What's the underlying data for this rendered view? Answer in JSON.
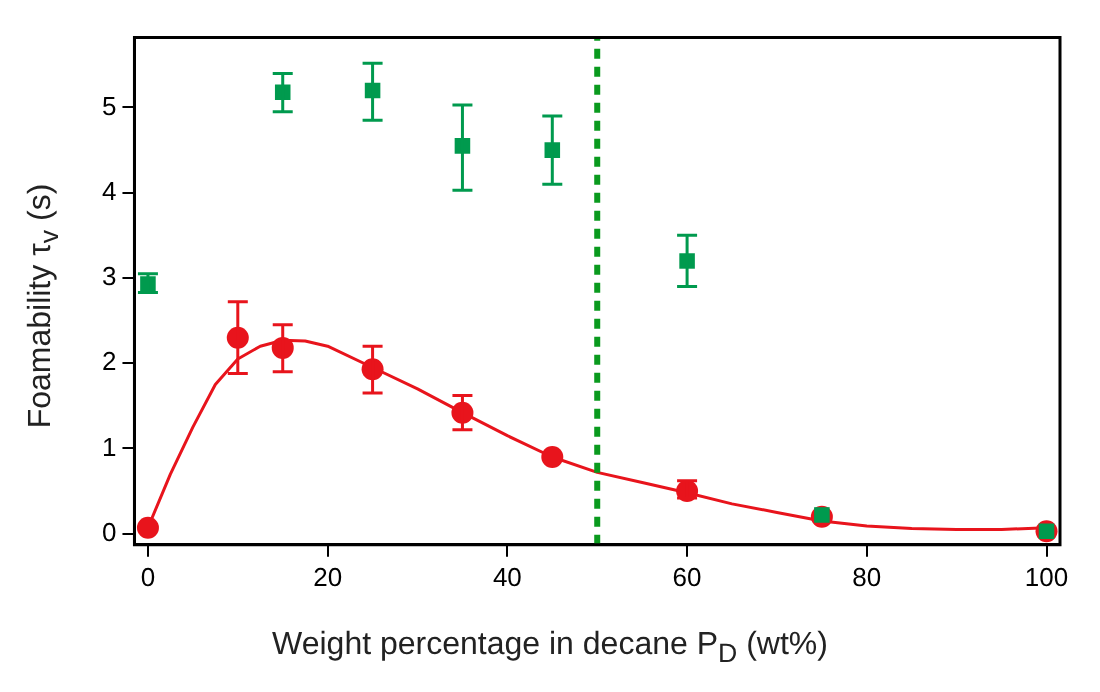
{
  "chart_data": {
    "type": "scatter",
    "xlabel": "Weight percentage in decane P$_{D}$ (wt%)",
    "ylabel": "Foamability τ$_{v}$ (s)",
    "xlim": [
      -1.5,
      101.5
    ],
    "xticks": [
      0,
      20,
      40,
      60,
      80,
      100
    ],
    "ylim": [
      -0.13,
      5.82
    ],
    "yticks": [
      0,
      1,
      2,
      3,
      4,
      5
    ],
    "grid": false,
    "legend": false,
    "series": [
      {
        "type": "scatter",
        "color": "#009a4e",
        "marker": "square",
        "x": [
          0,
          15,
          25,
          35,
          45,
          60,
          75,
          100
        ],
        "values": [
          2.93,
          5.18,
          5.2,
          4.55,
          4.5,
          3.2,
          0.22,
          0.03
        ],
        "errors": [
          [
            2.83,
            3.05
          ],
          [
            4.95,
            5.4
          ],
          [
            4.85,
            5.52
          ],
          [
            4.03,
            5.03
          ],
          [
            4.1,
            4.9
          ],
          [
            2.9,
            3.5
          ],
          null,
          null
        ]
      },
      {
        "type": "scatter",
        "color": "#e8141c",
        "marker": "circle",
        "x": [
          0,
          10,
          15,
          25,
          35,
          45,
          60,
          75,
          100
        ],
        "values": [
          0.07,
          2.3,
          2.18,
          1.93,
          1.42,
          0.9,
          0.5,
          0.2,
          0.03
        ],
        "errors": [
          null,
          [
            1.88,
            2.72
          ],
          [
            1.9,
            2.45
          ],
          [
            1.65,
            2.2
          ],
          [
            1.22,
            1.62
          ],
          null,
          [
            0.42,
            0.62
          ],
          null,
          null
        ]
      },
      {
        "type": "line",
        "color": "#e8141c",
        "marker": "none",
        "x": [
          0,
          2.5,
          5,
          7.5,
          10,
          12.5,
          15,
          17.5,
          20,
          25,
          30,
          35,
          40,
          45,
          50,
          55,
          60,
          65,
          70,
          75,
          80,
          85,
          90,
          95,
          100
        ],
        "values": [
          0.07,
          0.7,
          1.25,
          1.75,
          2.05,
          2.2,
          2.27,
          2.26,
          2.2,
          1.95,
          1.7,
          1.42,
          1.15,
          0.9,
          0.72,
          0.6,
          0.48,
          0.35,
          0.25,
          0.15,
          0.09,
          0.06,
          0.05,
          0.05,
          0.07
        ]
      }
    ],
    "ref_lines": [
      {
        "axis": "x",
        "value": 50,
        "color": "#0a9a1e",
        "line_style": "dashed"
      }
    ]
  }
}
